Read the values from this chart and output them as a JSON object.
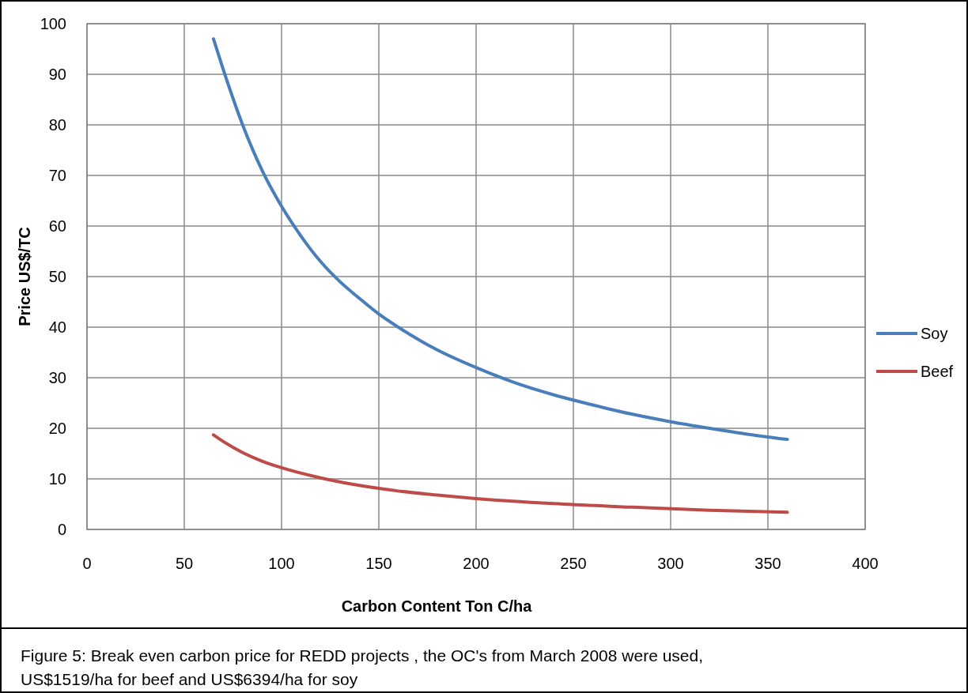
{
  "chart_data": {
    "type": "line",
    "xlabel": "Carbon Content Ton C/ha",
    "ylabel": "Price US$/TC",
    "xlim": [
      0,
      400
    ],
    "xticks": [
      0,
      50,
      100,
      150,
      200,
      250,
      300,
      350,
      400
    ],
    "ylim": [
      0,
      100
    ],
    "yticks": [
      0,
      10,
      20,
      30,
      40,
      50,
      60,
      70,
      80,
      90,
      100
    ],
    "grid": true,
    "legend": "right",
    "marker": "none",
    "line_style": "solid",
    "series": [
      {
        "name": "Soy",
        "color": "#4a7ebb",
        "x": [
          65,
          70,
          80,
          90,
          100,
          110,
          120,
          130,
          140,
          150,
          160,
          180,
          200,
          220,
          240,
          260,
          280,
          300,
          320,
          340,
          360
        ],
        "values": [
          97,
          91,
          80,
          71,
          63.9,
          58,
          53,
          49,
          45.7,
          42.6,
          40,
          35.5,
          32,
          29,
          26.6,
          24.6,
          22.8,
          21.3,
          20,
          18.8,
          17.8
        ]
      },
      {
        "name": "Beef",
        "color": "#be4b48",
        "x": [
          65,
          70,
          80,
          90,
          100,
          120,
          140,
          160,
          180,
          200,
          240,
          280,
          320,
          360
        ],
        "values": [
          18.7,
          17.4,
          15.2,
          13.5,
          12.2,
          10.2,
          8.7,
          7.6,
          6.8,
          6.1,
          5.1,
          4.4,
          3.8,
          3.4
        ]
      }
    ],
    "annotations": [
      "Figure 5: Break even carbon price for REDD projects , the OC's from March 2008 were used, US$1519/ha for beef and US$6394/ha for soy"
    ]
  }
}
